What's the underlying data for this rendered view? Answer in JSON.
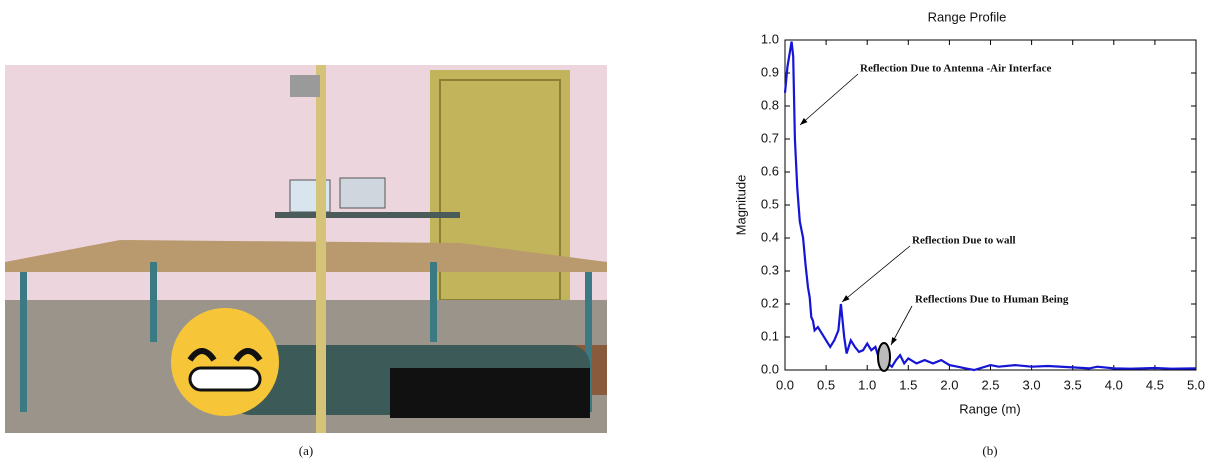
{
  "chart_data": {
    "type": "line",
    "title": "Range Profile",
    "xlabel": "Range (m)",
    "ylabel": "Magnitude",
    "x": [
      0.0,
      0.03,
      0.08,
      0.1,
      0.12,
      0.15,
      0.18,
      0.22,
      0.25,
      0.28,
      0.3,
      0.32,
      0.34,
      0.36,
      0.4,
      0.45,
      0.5,
      0.55,
      0.6,
      0.65,
      0.68,
      0.72,
      0.75,
      0.8,
      0.85,
      0.9,
      0.95,
      1.0,
      1.05,
      1.1,
      1.15,
      1.2,
      1.25,
      1.3,
      1.35,
      1.4,
      1.45,
      1.5,
      1.6,
      1.7,
      1.8,
      1.9,
      2.0,
      2.1,
      2.2,
      2.3,
      2.5,
      2.6,
      2.8,
      3.0,
      3.2,
      3.5,
      3.7,
      3.8,
      4.0,
      4.2,
      4.5,
      4.7,
      5.0
    ],
    "series": [
      {
        "color": "#1515d6",
        "values": [
          0.84,
          0.92,
          0.995,
          0.95,
          0.7,
          0.55,
          0.45,
          0.4,
          0.32,
          0.25,
          0.22,
          0.16,
          0.15,
          0.12,
          0.13,
          0.11,
          0.09,
          0.07,
          0.09,
          0.12,
          0.2,
          0.1,
          0.05,
          0.09,
          0.07,
          0.055,
          0.06,
          0.08,
          0.06,
          0.07,
          0.03,
          0.04,
          0.02,
          0.01,
          0.03,
          0.045,
          0.02,
          0.035,
          0.02,
          0.03,
          0.02,
          0.03,
          0.015,
          0.01,
          0.005,
          0.0,
          0.015,
          0.01,
          0.015,
          0.01,
          0.012,
          0.008,
          0.005,
          0.01,
          0.005,
          0.004,
          0.006,
          0.004,
          0.005
        ]
      }
    ],
    "xlim": [
      0,
      5
    ],
    "xticks": [
      {
        "value": 0,
        "label": "0.0"
      },
      {
        "value": 0.5,
        "label": "0.5"
      },
      {
        "value": 1,
        "label": "1.0"
      },
      {
        "value": 1.5,
        "label": "1.5"
      },
      {
        "value": 2,
        "label": "2.0"
      },
      {
        "value": 2.5,
        "label": "2.5"
      },
      {
        "value": 3,
        "label": "3.0"
      },
      {
        "value": 3.5,
        "label": "3.5"
      },
      {
        "value": 4,
        "label": "4.0"
      },
      {
        "value": 4.5,
        "label": "4.5"
      },
      {
        "value": 5,
        "label": "5.0"
      }
    ],
    "ylim": [
      0,
      1
    ],
    "yticks": [
      {
        "value": 0,
        "label": "0.0"
      },
      {
        "value": 0.1,
        "label": "0.1"
      },
      {
        "value": 0.2,
        "label": "0.2"
      },
      {
        "value": 0.3,
        "label": "0.3"
      },
      {
        "value": 0.4,
        "label": "0.4"
      },
      {
        "value": 0.5,
        "label": "0.5"
      },
      {
        "value": 0.6,
        "label": "0.6"
      },
      {
        "value": 0.7,
        "label": "0.7"
      },
      {
        "value": 0.8,
        "label": "0.8"
      },
      {
        "value": 0.9,
        "label": "0.9"
      },
      {
        "value": 1,
        "label": "1.0"
      }
    ],
    "annotations": [
      "Reflection Due to Antenna -Air Interface",
      "Reflection Due to wall",
      "Reflections Due to Human Being"
    ],
    "caption": "(b)"
  },
  "photo": {
    "caption": "(a)"
  }
}
